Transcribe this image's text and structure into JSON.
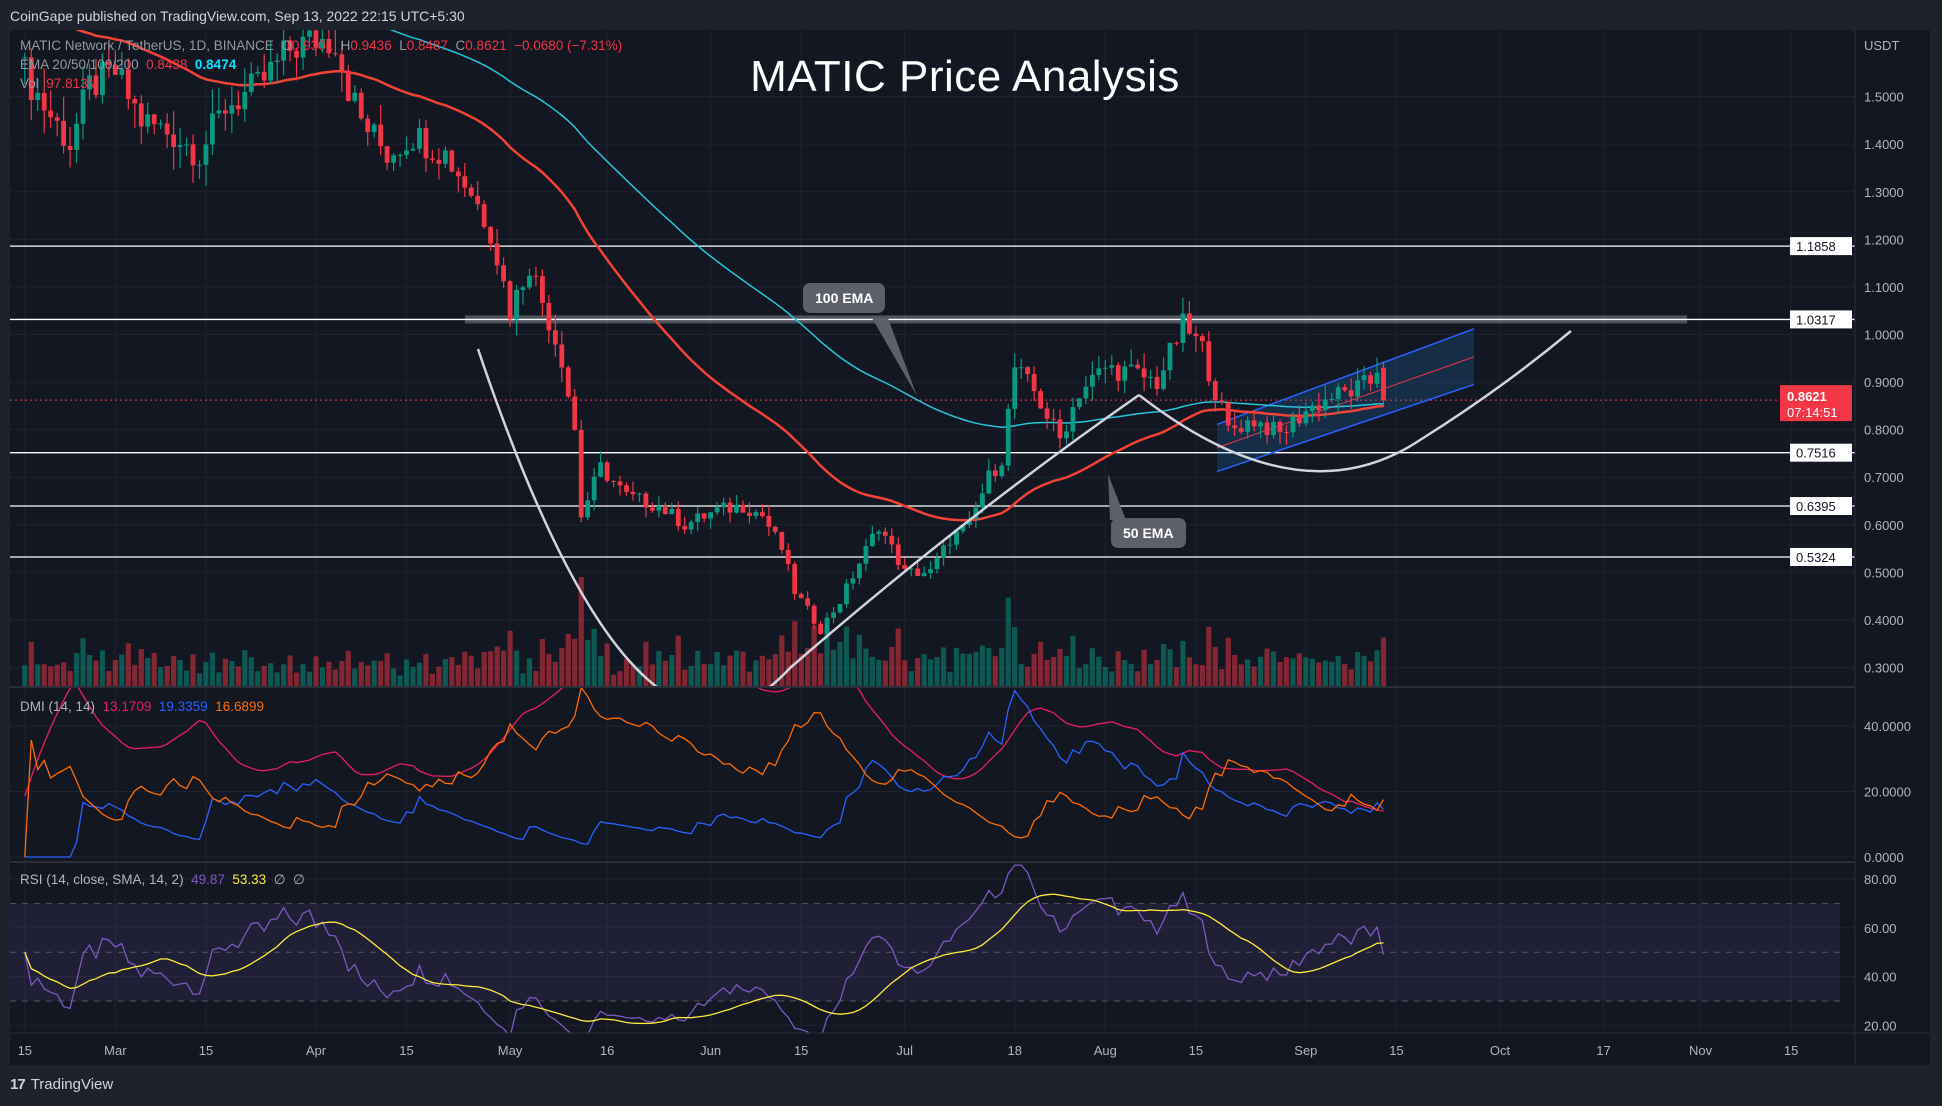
{
  "header": {
    "published": "CoinGape published on TradingView.com, Sep 13, 2022 22:15 UTC+5:30"
  },
  "legend": {
    "symbol": "MATIC Network / TetherUS, 1D, BINANCE",
    "o_label": "O",
    "o": "0.9301",
    "h_label": "H",
    "h": "0.9436",
    "l_label": "L",
    "l": "0.8487",
    "c_label": "C",
    "c": "0.8621",
    "change": "−0.0680 (−7.31%)",
    "ema_label": "EMA 20/50/100/200",
    "ema_a": "0.8438",
    "ema_b": "0.8474",
    "vol_label": "Vol",
    "vol": "97.813M"
  },
  "title": "MATIC Price Analysis",
  "annotations": {
    "ema100": "100 EMA",
    "ema50": "50 EMA"
  },
  "price_axis": {
    "unit": "USDT",
    "ticks": [
      1.5,
      1.4,
      1.3,
      1.2,
      1.1,
      1.0,
      0.9,
      0.8,
      0.7,
      0.6,
      0.5,
      0.4,
      0.3
    ],
    "levels": [
      {
        "value": 1.1858,
        "label": "1.1858"
      },
      {
        "value": 1.0317,
        "label": "1.0317",
        "zone": true
      },
      {
        "value": 0.7516,
        "label": "0.7516"
      },
      {
        "value": 0.6395,
        "label": "0.6395"
      },
      {
        "value": 0.5324,
        "label": "0.5324"
      }
    ],
    "current": {
      "value": 0.8621,
      "price": "0.8621",
      "countdown": "07:14:51"
    }
  },
  "dmi": {
    "label": "DMI (14, 14)",
    "v1": "13.1709",
    "v2": "19.3359",
    "v3": "16.6899",
    "ticks": [
      40,
      20,
      0
    ]
  },
  "rsi": {
    "label": "RSI (14, close, SMA, 14, 2)",
    "v1": "49.87",
    "v2": "53.33",
    "v3": "∅",
    "v4": "∅",
    "ticks": [
      80,
      60,
      40,
      20
    ],
    "band": [
      30,
      70
    ]
  },
  "time_axis": {
    "labels": [
      {
        "label": "15",
        "date": "2022-02-15"
      },
      {
        "label": "Mar",
        "date": "2022-03-01"
      },
      {
        "label": "15",
        "date": "2022-03-15"
      },
      {
        "label": "Apr",
        "date": "2022-04-01"
      },
      {
        "label": "15",
        "date": "2022-04-15"
      },
      {
        "label": "May",
        "date": "2022-05-01"
      },
      {
        "label": "16",
        "date": "2022-05-16"
      },
      {
        "label": "Jun",
        "date": "2022-06-01"
      },
      {
        "label": "15",
        "date": "2022-06-15"
      },
      {
        "label": "Jul",
        "date": "2022-07-01"
      },
      {
        "label": "18",
        "date": "2022-07-18"
      },
      {
        "label": "Aug",
        "date": "2022-08-01"
      },
      {
        "label": "15",
        "date": "2022-08-15"
      },
      {
        "label": "Sep",
        "date": "2022-09-01"
      },
      {
        "label": "15",
        "date": "2022-09-15"
      },
      {
        "label": "Oct",
        "date": "2022-10-01"
      },
      {
        "label": "17",
        "date": "2022-10-17"
      },
      {
        "label": "Nov",
        "date": "2022-11-01"
      },
      {
        "label": "15",
        "date": "2022-11-15"
      }
    ]
  },
  "footer": {
    "brand": "TradingView",
    "logo": "17"
  },
  "colors": {
    "bg": "#131722",
    "up": "#089981",
    "down": "#f23645",
    "ema50": "#f44336",
    "ema100": "#26c6da",
    "adx": "#e91e63",
    "plus_di": "#2962ff",
    "minus_di": "#ff6d00",
    "rsi": "#7e57c2",
    "rsi_ma": "#ffeb3b",
    "channel": "#2962ff"
  },
  "chart_data": {
    "type": "candlestick",
    "symbol": "MATICUSDT",
    "interval": "1D",
    "start": "2022-02-15",
    "ylim": [
      0.27,
      1.64
    ],
    "last_candle": {
      "open": 0.9301,
      "high": 0.9436,
      "low": 0.8487,
      "close": 0.8621
    },
    "close_anchors": [
      [
        "2022-02-15",
        1.55
      ],
      [
        "2022-02-18",
        1.48
      ],
      [
        "2022-02-22",
        1.4
      ],
      [
        "2022-02-25",
        1.52
      ],
      [
        "2022-03-01",
        1.55
      ],
      [
        "2022-03-05",
        1.45
      ],
      [
        "2022-03-10",
        1.42
      ],
      [
        "2022-03-14",
        1.38
      ],
      [
        "2022-03-18",
        1.48
      ],
      [
        "2022-03-23",
        1.52
      ],
      [
        "2022-03-28",
        1.6
      ],
      [
        "2022-04-01",
        1.62
      ],
      [
        "2022-04-04",
        1.62
      ],
      [
        "2022-04-06",
        1.52
      ],
      [
        "2022-04-08",
        1.45
      ],
      [
        "2022-04-12",
        1.38
      ],
      [
        "2022-04-16",
        1.42
      ],
      [
        "2022-04-21",
        1.38
      ],
      [
        "2022-04-25",
        1.3
      ],
      [
        "2022-04-28",
        1.22
      ],
      [
        "2022-05-01",
        1.05
      ],
      [
        "2022-05-04",
        1.15
      ],
      [
        "2022-05-07",
        1.03
      ],
      [
        "2022-05-09",
        0.95
      ],
      [
        "2022-05-11",
        0.8
      ],
      [
        "2022-05-12",
        0.62
      ],
      [
        "2022-05-15",
        0.72
      ],
      [
        "2022-05-19",
        0.66
      ],
      [
        "2022-05-24",
        0.64
      ],
      [
        "2022-05-28",
        0.6
      ],
      [
        "2022-06-02",
        0.63
      ],
      [
        "2022-06-06",
        0.64
      ],
      [
        "2022-06-09",
        0.62
      ],
      [
        "2022-06-12",
        0.55
      ],
      [
        "2022-06-14",
        0.46
      ],
      [
        "2022-06-18",
        0.38
      ],
      [
        "2022-06-21",
        0.44
      ],
      [
        "2022-06-24",
        0.52
      ],
      [
        "2022-06-27",
        0.6
      ],
      [
        "2022-07-01",
        0.5
      ],
      [
        "2022-07-05",
        0.5
      ],
      [
        "2022-07-08",
        0.57
      ],
      [
        "2022-07-11",
        0.6
      ],
      [
        "2022-07-14",
        0.7
      ],
      [
        "2022-07-16",
        0.74
      ],
      [
        "2022-07-18",
        0.93
      ],
      [
        "2022-07-21",
        0.88
      ],
      [
        "2022-07-25",
        0.78
      ],
      [
        "2022-07-28",
        0.88
      ],
      [
        "2022-08-01",
        0.93
      ],
      [
        "2022-08-05",
        0.92
      ],
      [
        "2022-08-09",
        0.9
      ],
      [
        "2022-08-13",
        1.02
      ],
      [
        "2022-08-16",
        0.97
      ],
      [
        "2022-08-18",
        0.88
      ],
      [
        "2022-08-20",
        0.8
      ],
      [
        "2022-08-24",
        0.82
      ],
      [
        "2022-08-28",
        0.79
      ],
      [
        "2022-09-01",
        0.84
      ],
      [
        "2022-09-05",
        0.87
      ],
      [
        "2022-09-08",
        0.88
      ],
      [
        "2022-09-11",
        0.9
      ],
      [
        "2022-09-12",
        0.93
      ],
      [
        "2022-09-13",
        0.8621
      ]
    ],
    "indicators": [
      "EMA 50",
      "EMA 100",
      "Volume",
      "DMI 14",
      "RSI 14"
    ],
    "pattern": "cup and handle with rising channel"
  }
}
